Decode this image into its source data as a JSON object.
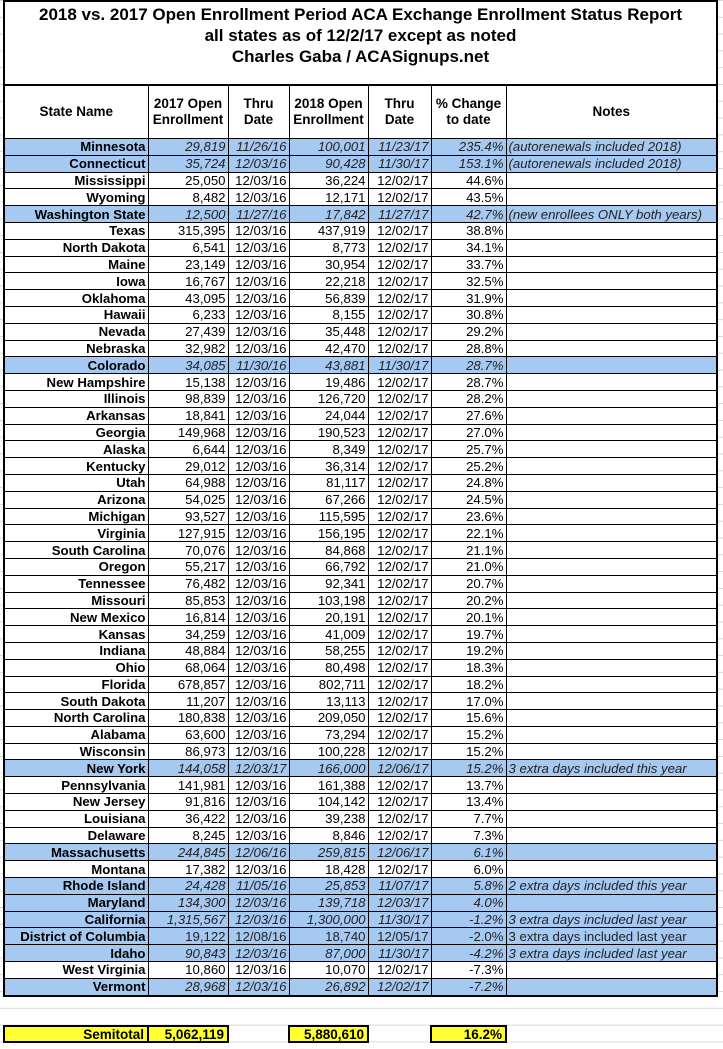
{
  "title": {
    "line1": "2018 vs. 2017 Open Enrollment Period ACA Exchange Enrollment Status Report",
    "line2": "all states as of 12/2/17 except as noted",
    "line3": "Charles Gaba / ACASignups.net"
  },
  "headers": [
    "State Name",
    "2017 Open Enrollment",
    "Thru Date",
    "2018 Open Enrollment",
    "Thru Date",
    "% Change to date",
    "Notes"
  ],
  "colors": {
    "highlight": "#a6c9f2",
    "total": "#ffff33"
  },
  "rows": [
    {
      "state": "Minnesota",
      "e2017": "29,819",
      "d2017": "11/26/16",
      "e2018": "100,001",
      "d2018": "11/23/17",
      "pct": "235.4%",
      "notes": "(autorenewals included 2018)",
      "highlight": true,
      "italic": true
    },
    {
      "state": "Connecticut",
      "e2017": "35,724",
      "d2017": "12/03/16",
      "e2018": "90,428",
      "d2018": "11/30/17",
      "pct": "153.1%",
      "notes": "(autorenewals included 2018)",
      "highlight": true,
      "italic": true
    },
    {
      "state": "Mississippi",
      "e2017": "25,050",
      "d2017": "12/03/16",
      "e2018": "36,224",
      "d2018": "12/02/17",
      "pct": "44.6%",
      "notes": ""
    },
    {
      "state": "Wyoming",
      "e2017": "8,482",
      "d2017": "12/03/16",
      "e2018": "12,171",
      "d2018": "12/02/17",
      "pct": "43.5%",
      "notes": ""
    },
    {
      "state": "Washington State",
      "e2017": "12,500",
      "d2017": "11/27/16",
      "e2018": "17,842",
      "d2018": "11/27/17",
      "pct": "42.7%",
      "notes": "(new enrollees ONLY both years)",
      "highlight": true,
      "italic": true
    },
    {
      "state": "Texas",
      "e2017": "315,395",
      "d2017": "12/03/16",
      "e2018": "437,919",
      "d2018": "12/02/17",
      "pct": "38.8%",
      "notes": ""
    },
    {
      "state": "North Dakota",
      "e2017": "6,541",
      "d2017": "12/03/16",
      "e2018": "8,773",
      "d2018": "12/02/17",
      "pct": "34.1%",
      "notes": ""
    },
    {
      "state": "Maine",
      "e2017": "23,149",
      "d2017": "12/03/16",
      "e2018": "30,954",
      "d2018": "12/02/17",
      "pct": "33.7%",
      "notes": ""
    },
    {
      "state": "Iowa",
      "e2017": "16,767",
      "d2017": "12/03/16",
      "e2018": "22,218",
      "d2018": "12/02/17",
      "pct": "32.5%",
      "notes": ""
    },
    {
      "state": "Oklahoma",
      "e2017": "43,095",
      "d2017": "12/03/16",
      "e2018": "56,839",
      "d2018": "12/02/17",
      "pct": "31.9%",
      "notes": ""
    },
    {
      "state": "Hawaii",
      "e2017": "6,233",
      "d2017": "12/03/16",
      "e2018": "8,155",
      "d2018": "12/02/17",
      "pct": "30.8%",
      "notes": ""
    },
    {
      "state": "Nevada",
      "e2017": "27,439",
      "d2017": "12/03/16",
      "e2018": "35,448",
      "d2018": "12/02/17",
      "pct": "29.2%",
      "notes": ""
    },
    {
      "state": "Nebraska",
      "e2017": "32,982",
      "d2017": "12/03/16",
      "e2018": "42,470",
      "d2018": "12/02/17",
      "pct": "28.8%",
      "notes": ""
    },
    {
      "state": "Colorado",
      "e2017": "34,085",
      "d2017": "11/30/16",
      "e2018": "43,881",
      "d2018": "11/30/17",
      "pct": "28.7%",
      "notes": "",
      "highlight": true,
      "italic": true
    },
    {
      "state": "New Hampshire",
      "e2017": "15,138",
      "d2017": "12/03/16",
      "e2018": "19,486",
      "d2018": "12/02/17",
      "pct": "28.7%",
      "notes": ""
    },
    {
      "state": "Illinois",
      "e2017": "98,839",
      "d2017": "12/03/16",
      "e2018": "126,720",
      "d2018": "12/02/17",
      "pct": "28.2%",
      "notes": ""
    },
    {
      "state": "Arkansas",
      "e2017": "18,841",
      "d2017": "12/03/16",
      "e2018": "24,044",
      "d2018": "12/02/17",
      "pct": "27.6%",
      "notes": ""
    },
    {
      "state": "Georgia",
      "e2017": "149,968",
      "d2017": "12/03/16",
      "e2018": "190,523",
      "d2018": "12/02/17",
      "pct": "27.0%",
      "notes": ""
    },
    {
      "state": "Alaska",
      "e2017": "6,644",
      "d2017": "12/03/16",
      "e2018": "8,349",
      "d2018": "12/02/17",
      "pct": "25.7%",
      "notes": ""
    },
    {
      "state": "Kentucky",
      "e2017": "29,012",
      "d2017": "12/03/16",
      "e2018": "36,314",
      "d2018": "12/02/17",
      "pct": "25.2%",
      "notes": ""
    },
    {
      "state": "Utah",
      "e2017": "64,988",
      "d2017": "12/03/16",
      "e2018": "81,117",
      "d2018": "12/02/17",
      "pct": "24.8%",
      "notes": ""
    },
    {
      "state": "Arizona",
      "e2017": "54,025",
      "d2017": "12/03/16",
      "e2018": "67,266",
      "d2018": "12/02/17",
      "pct": "24.5%",
      "notes": ""
    },
    {
      "state": "Michigan",
      "e2017": "93,527",
      "d2017": "12/03/16",
      "e2018": "115,595",
      "d2018": "12/02/17",
      "pct": "23.6%",
      "notes": ""
    },
    {
      "state": "Virginia",
      "e2017": "127,915",
      "d2017": "12/03/16",
      "e2018": "156,195",
      "d2018": "12/02/17",
      "pct": "22.1%",
      "notes": ""
    },
    {
      "state": "South Carolina",
      "e2017": "70,076",
      "d2017": "12/03/16",
      "e2018": "84,868",
      "d2018": "12/02/17",
      "pct": "21.1%",
      "notes": ""
    },
    {
      "state": "Oregon",
      "e2017": "55,217",
      "d2017": "12/03/16",
      "e2018": "66,792",
      "d2018": "12/02/17",
      "pct": "21.0%",
      "notes": ""
    },
    {
      "state": "Tennessee",
      "e2017": "76,482",
      "d2017": "12/03/16",
      "e2018": "92,341",
      "d2018": "12/02/17",
      "pct": "20.7%",
      "notes": ""
    },
    {
      "state": "Missouri",
      "e2017": "85,853",
      "d2017": "12/03/16",
      "e2018": "103,198",
      "d2018": "12/02/17",
      "pct": "20.2%",
      "notes": ""
    },
    {
      "state": "New Mexico",
      "e2017": "16,814",
      "d2017": "12/03/16",
      "e2018": "20,191",
      "d2018": "12/02/17",
      "pct": "20.1%",
      "notes": ""
    },
    {
      "state": "Kansas",
      "e2017": "34,259",
      "d2017": "12/03/16",
      "e2018": "41,009",
      "d2018": "12/02/17",
      "pct": "19.7%",
      "notes": ""
    },
    {
      "state": "Indiana",
      "e2017": "48,884",
      "d2017": "12/03/16",
      "e2018": "58,255",
      "d2018": "12/02/17",
      "pct": "19.2%",
      "notes": ""
    },
    {
      "state": "Ohio",
      "e2017": "68,064",
      "d2017": "12/03/16",
      "e2018": "80,498",
      "d2018": "12/02/17",
      "pct": "18.3%",
      "notes": ""
    },
    {
      "state": "Florida",
      "e2017": "678,857",
      "d2017": "12/03/16",
      "e2018": "802,711",
      "d2018": "12/02/17",
      "pct": "18.2%",
      "notes": ""
    },
    {
      "state": "South Dakota",
      "e2017": "11,207",
      "d2017": "12/03/16",
      "e2018": "13,113",
      "d2018": "12/02/17",
      "pct": "17.0%",
      "notes": ""
    },
    {
      "state": "North Carolina",
      "e2017": "180,838",
      "d2017": "12/03/16",
      "e2018": "209,050",
      "d2018": "12/02/17",
      "pct": "15.6%",
      "notes": ""
    },
    {
      "state": "Alabama",
      "e2017": "63,600",
      "d2017": "12/03/16",
      "e2018": "73,294",
      "d2018": "12/02/17",
      "pct": "15.2%",
      "notes": ""
    },
    {
      "state": "Wisconsin",
      "e2017": "86,973",
      "d2017": "12/03/16",
      "e2018": "100,228",
      "d2018": "12/02/17",
      "pct": "15.2%",
      "notes": ""
    },
    {
      "state": "New York",
      "e2017": "144,058",
      "d2017": "12/03/17",
      "e2018": "166,000",
      "d2018": "12/06/17",
      "pct": "15.2%",
      "notes": "3 extra days included this year",
      "highlight": true,
      "italic": true
    },
    {
      "state": "Pennsylvania",
      "e2017": "141,981",
      "d2017": "12/03/16",
      "e2018": "161,388",
      "d2018": "12/02/17",
      "pct": "13.7%",
      "notes": ""
    },
    {
      "state": "New Jersey",
      "e2017": "91,816",
      "d2017": "12/03/16",
      "e2018": "104,142",
      "d2018": "12/02/17",
      "pct": "13.4%",
      "notes": ""
    },
    {
      "state": "Louisiana",
      "e2017": "36,422",
      "d2017": "12/03/16",
      "e2018": "39,238",
      "d2018": "12/02/17",
      "pct": "7.7%",
      "notes": ""
    },
    {
      "state": "Delaware",
      "e2017": "8,245",
      "d2017": "12/03/16",
      "e2018": "8,846",
      "d2018": "12/02/17",
      "pct": "7.3%",
      "notes": ""
    },
    {
      "state": "Massachusetts",
      "e2017": "244,845",
      "d2017": "12/06/16",
      "e2018": "259,815",
      "d2018": "12/06/17",
      "pct": "6.1%",
      "notes": "",
      "highlight": true,
      "italic": true
    },
    {
      "state": "Montana",
      "e2017": "17,382",
      "d2017": "12/03/16",
      "e2018": "18,428",
      "d2018": "12/02/17",
      "pct": "6.0%",
      "notes": ""
    },
    {
      "state": "Rhode Island",
      "e2017": "24,428",
      "d2017": "11/05/16",
      "e2018": "25,853",
      "d2018": "11/07/17",
      "pct": "5.8%",
      "notes": "2 extra days included this year",
      "highlight": true,
      "italic": true
    },
    {
      "state": "Maryland",
      "e2017": "134,300",
      "d2017": "12/03/16",
      "e2018": "139,718",
      "d2018": "12/03/17",
      "pct": "4.0%",
      "notes": "",
      "highlight": true,
      "italic": true
    },
    {
      "state": "California",
      "e2017": "1,315,567",
      "d2017": "12/03/16",
      "e2018": "1,300,000",
      "d2018": "11/30/17",
      "pct": "-1.2%",
      "notes": "3 extra days included last year",
      "highlight": true,
      "italic": true
    },
    {
      "state": "District of Columbia",
      "e2017": "19,122",
      "d2017": "12/08/16",
      "e2018": "18,740",
      "d2018": "12/05/17",
      "pct": "-2.0%",
      "notes": "3 extra days included last year",
      "highlight": true,
      "italic": false
    },
    {
      "state": "Idaho",
      "e2017": "90,843",
      "d2017": "12/03/16",
      "e2018": "87,000",
      "d2018": "11/30/17",
      "pct": "-4.2%",
      "notes": "3 extra days included last year",
      "highlight": true,
      "italic": true
    },
    {
      "state": "West Virginia",
      "e2017": "10,860",
      "d2017": "12/03/16",
      "e2018": "10,070",
      "d2018": "12/02/17",
      "pct": "-7.3%",
      "notes": ""
    },
    {
      "state": "Vermont",
      "e2017": "28,968",
      "d2017": "12/03/16",
      "e2018": "26,892",
      "d2018": "12/02/17",
      "pct": "-7.2%",
      "notes": "",
      "highlight": true,
      "italic": true
    }
  ],
  "totals": {
    "label": "Semitotal",
    "e2017": "5,062,119",
    "e2018": "5,880,610",
    "pct": "16.2%"
  }
}
